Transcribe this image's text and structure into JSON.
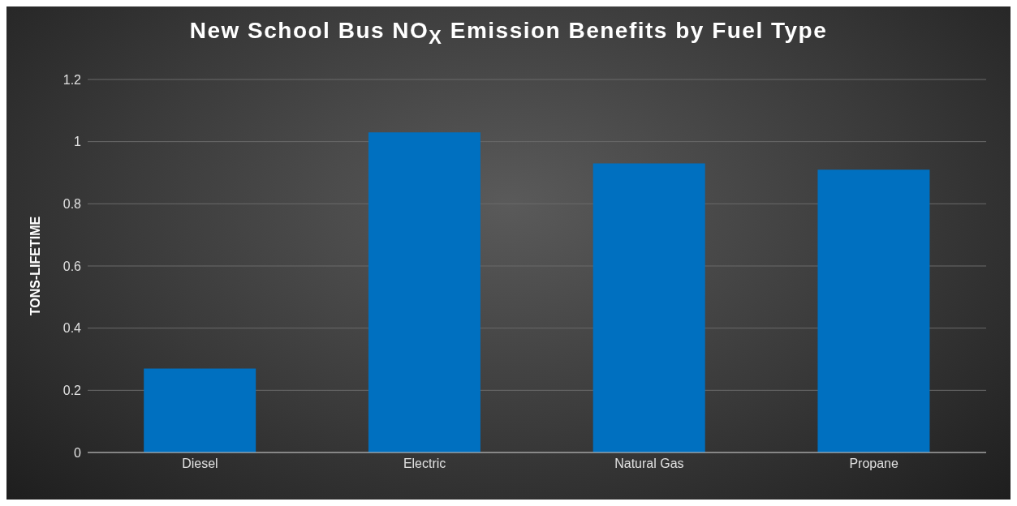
{
  "chart_data": {
    "type": "bar",
    "title": "New School Bus NO$_{X}$ Emission Benefits by Fuel Type",
    "ylabel": "TONS-LIFETIME",
    "categories": [
      "Diesel",
      "Electric",
      "Natural Gas",
      "Propane"
    ],
    "values": [
      0.27,
      1.03,
      0.93,
      0.91
    ],
    "color": "#0070c0",
    "ylim": [
      0,
      1.2
    ],
    "yticks": [
      0,
      0.2,
      0.4,
      0.6,
      0.8,
      1,
      1.2
    ],
    "grid": "y",
    "legend": false
  }
}
